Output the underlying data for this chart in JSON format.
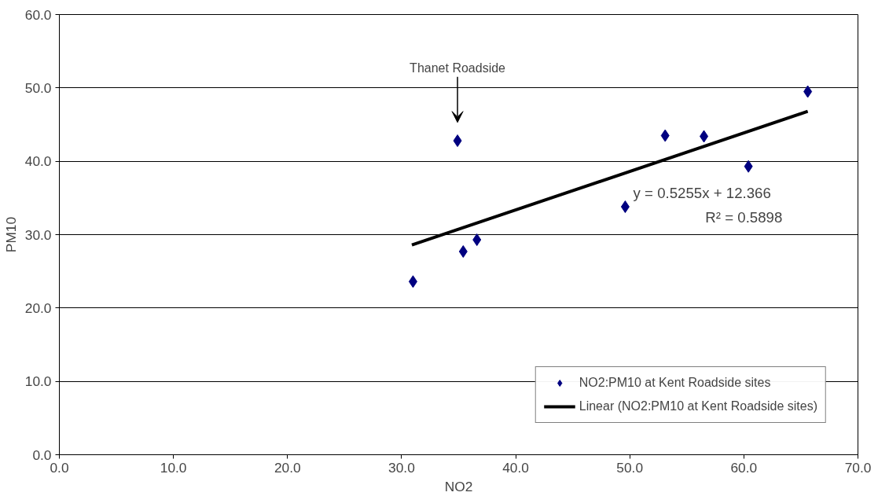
{
  "chart_data": {
    "type": "scatter",
    "xlabel": "NO2",
    "ylabel": "PM10",
    "xlim": [
      0,
      70
    ],
    "ylim": [
      0,
      60
    ],
    "xticks": [
      {
        "value": 0,
        "label": "0.0"
      },
      {
        "value": 10,
        "label": "10.0"
      },
      {
        "value": 20,
        "label": "20.0"
      },
      {
        "value": 30,
        "label": "30.0"
      },
      {
        "value": 40,
        "label": "40.0"
      },
      {
        "value": 50,
        "label": "50.0"
      },
      {
        "value": 60,
        "label": "60.0"
      },
      {
        "value": 70,
        "label": "70.0"
      }
    ],
    "yticks": [
      {
        "value": 0,
        "label": "0.0"
      },
      {
        "value": 10,
        "label": "10.0"
      },
      {
        "value": 20,
        "label": "20.0"
      },
      {
        "value": 30,
        "label": "30.0"
      },
      {
        "value": 40,
        "label": "40.0"
      },
      {
        "value": 50,
        "label": "50.0"
      },
      {
        "value": 60,
        "label": "60.0"
      }
    ],
    "grid": "y",
    "legend": "bottom right",
    "series": [
      {
        "name": "NO2:PM10 at Kent Roadside sites",
        "marker": "diamond",
        "color": "#000080",
        "x": [
          31.0,
          34.9,
          35.4,
          36.6,
          49.6,
          53.1,
          56.5,
          60.4,
          65.6
        ],
        "values": [
          23.6,
          42.8,
          27.7,
          29.3,
          33.8,
          43.5,
          43.4,
          39.3,
          49.5
        ]
      },
      {
        "name": "Linear (NO2:PM10 at Kent Roadside sites)",
        "type": "line",
        "color": "#000000",
        "x": [
          30.9,
          65.6
        ],
        "values": [
          28.6,
          46.8
        ]
      }
    ],
    "annotations": [
      "Thanet Roadside",
      "y = 0.5255x + 12.366",
      "R² = 0.5898"
    ]
  }
}
